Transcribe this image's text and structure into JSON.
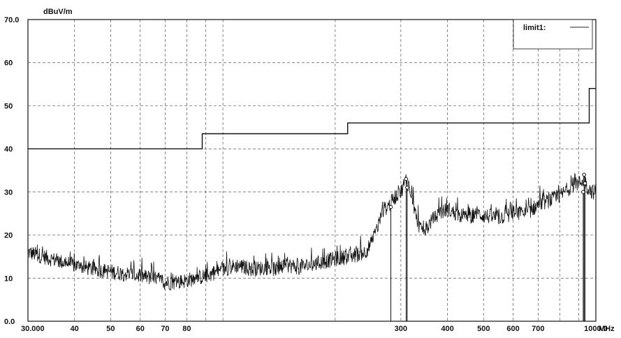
{
  "chart_data": {
    "type": "line",
    "title": "",
    "x_scale": "log",
    "xlim": [
      30,
      1000
    ],
    "ylim": [
      0,
      70
    ],
    "xunit": "MHz",
    "yunit": "dBuV/m",
    "y_ticks": [
      {
        "value": 0,
        "label": "0.0"
      },
      {
        "value": 10,
        "label": "10"
      },
      {
        "value": 20,
        "label": "20"
      },
      {
        "value": 30,
        "label": "30"
      },
      {
        "value": 40,
        "label": "40"
      },
      {
        "value": 50,
        "label": "50"
      },
      {
        "value": 60,
        "label": "60"
      },
      {
        "value": 70,
        "label": "70.0"
      }
    ],
    "x_ticks": [
      {
        "value": 30,
        "label": "30.000"
      },
      {
        "value": 40,
        "label": "40"
      },
      {
        "value": 50,
        "label": "50"
      },
      {
        "value": 60,
        "label": "60"
      },
      {
        "value": 70,
        "label": "70"
      },
      {
        "value": 80,
        "label": "80"
      },
      {
        "value": 300,
        "label": "300"
      },
      {
        "value": 400,
        "label": "400"
      },
      {
        "value": 500,
        "label": "500"
      },
      {
        "value": 600,
        "label": "600"
      },
      {
        "value": 700,
        "label": "700"
      },
      {
        "value": 1000,
        "label": "1000.0"
      }
    ],
    "x_gridlines": [
      30,
      40,
      50,
      60,
      70,
      80,
      90,
      100,
      200,
      300,
      400,
      500,
      600,
      700,
      800,
      900,
      1000
    ],
    "y_gridlines": [
      0,
      10,
      20,
      30,
      40,
      50,
      60,
      70
    ],
    "grid": true,
    "legend": {
      "position": "top-right",
      "entries": [
        "limit1:"
      ]
    },
    "limit_line": {
      "name": "limit1",
      "points": [
        [
          30,
          40
        ],
        [
          88,
          40
        ],
        [
          88,
          43.5
        ],
        [
          216,
          43.5
        ],
        [
          216,
          46
        ],
        [
          960,
          46
        ],
        [
          960,
          54
        ],
        [
          1000,
          54
        ]
      ]
    },
    "measurement_series": {
      "points": [
        [
          30,
          16
        ],
        [
          33,
          15
        ],
        [
          36,
          14
        ],
        [
          40,
          13
        ],
        [
          45,
          12
        ],
        [
          50,
          11.5
        ],
        [
          55,
          11
        ],
        [
          60,
          10.5
        ],
        [
          65,
          10
        ],
        [
          70,
          9
        ],
        [
          75,
          9
        ],
        [
          80,
          9.5
        ],
        [
          85,
          10
        ],
        [
          90,
          10.5
        ],
        [
          100,
          12
        ],
        [
          110,
          13
        ],
        [
          120,
          12
        ],
        [
          130,
          12.5
        ],
        [
          140,
          12
        ],
        [
          150,
          13
        ],
        [
          160,
          12.5
        ],
        [
          170,
          13
        ],
        [
          180,
          13.5
        ],
        [
          190,
          14
        ],
        [
          200,
          14.5
        ],
        [
          220,
          15
        ],
        [
          240,
          16
        ],
        [
          250,
          18
        ],
        [
          260,
          22
        ],
        [
          270,
          26
        ],
        [
          280,
          27
        ],
        [
          290,
          29
        ],
        [
          300,
          30
        ],
        [
          310,
          33
        ],
        [
          320,
          30
        ],
        [
          330,
          24
        ],
        [
          340,
          21
        ],
        [
          350,
          21
        ],
        [
          360,
          23
        ],
        [
          380,
          25
        ],
        [
          400,
          26
        ],
        [
          420,
          25
        ],
        [
          450,
          24
        ],
        [
          480,
          25
        ],
        [
          500,
          24.5
        ],
        [
          550,
          24
        ],
        [
          600,
          25
        ],
        [
          650,
          25
        ],
        [
          700,
          27
        ],
        [
          750,
          28
        ],
        [
          800,
          29
        ],
        [
          850,
          31
        ],
        [
          900,
          32
        ],
        [
          930,
          33
        ],
        [
          950,
          31
        ],
        [
          980,
          30
        ],
        [
          1000,
          30
        ]
      ],
      "noise_amplitude": 1.8
    },
    "markers": [
      {
        "id": "1",
        "x": 282,
        "y": 26.5
      },
      {
        "id": "2",
        "x": 310,
        "y": 33
      },
      {
        "id": "3",
        "x": 312,
        "y": 31
      },
      {
        "id": "4",
        "x": 930,
        "y": 34
      },
      {
        "id": "5",
        "x": 935,
        "y": 32
      },
      {
        "id": "6",
        "x": 925,
        "y": 30
      }
    ]
  }
}
